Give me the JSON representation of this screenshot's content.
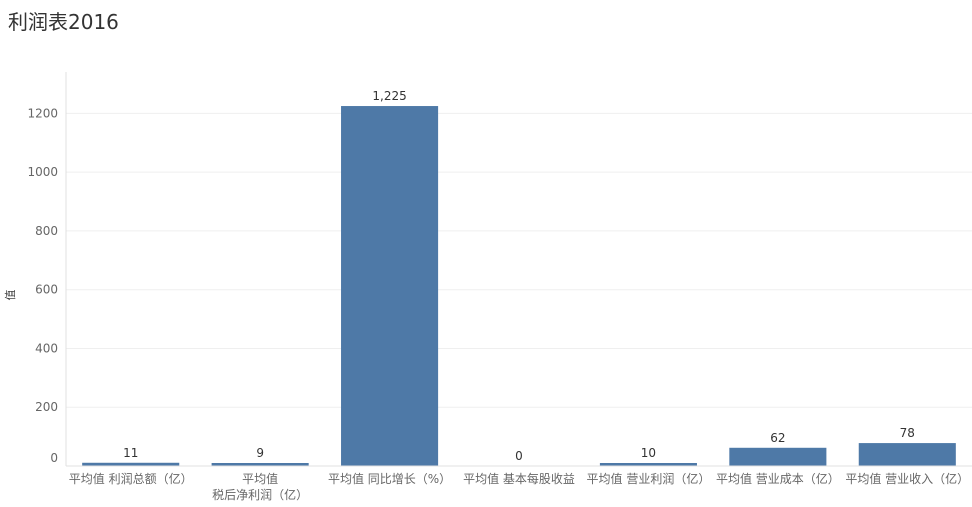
{
  "chart_data": {
    "type": "bar",
    "title": "利润表2016",
    "ylabel": "值",
    "ylim": [
      0,
      1300
    ],
    "yticks": [
      0,
      200,
      400,
      600,
      800,
      1000,
      1200
    ],
    "categories": [
      [
        "平均值 利润总额（亿）"
      ],
      [
        "平均值",
        "税后净利润（亿）"
      ],
      [
        "平均值 同比增长（%）"
      ],
      [
        "平均值 基本每股收益"
      ],
      [
        "平均值 营业利润（亿）"
      ],
      [
        "平均值 营业成本（亿）"
      ],
      [
        "平均值 营业收入（亿）"
      ]
    ],
    "values": [
      11,
      9,
      1225,
      0,
      10,
      62,
      78
    ],
    "value_labels": [
      "11",
      "9",
      "1,225",
      "0",
      "10",
      "62",
      "78"
    ],
    "bar_color": "#4e79a7",
    "grid": true
  }
}
